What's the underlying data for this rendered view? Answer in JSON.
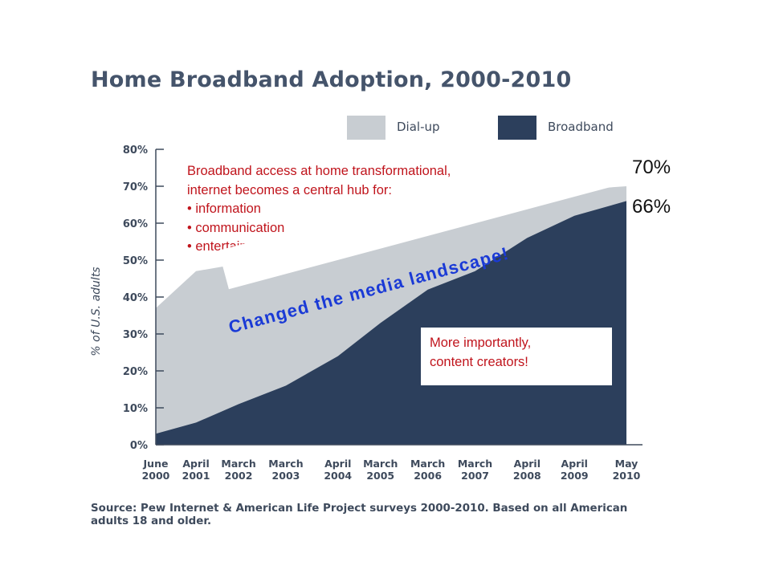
{
  "title": "Home Broadband Adoption, 2000-2010",
  "legend": {
    "dialup_label": "Dial-up",
    "broadband_label": "Broadband",
    "dialup_color": "#c8cdd2",
    "broadband_color": "#2c3f5c"
  },
  "callouts": {
    "transform_line1": "Broadband access at home transformational,",
    "transform_line2": "internet becomes a central hub for:",
    "bullet1": "• information",
    "bullet2": "• communication",
    "bullet3": "• entertainment",
    "banner": "Changed the media landscape!",
    "creators_line1": "More importantly,",
    "creators_line2": "content creators!",
    "text_color": "#c0141c",
    "banner_color": "#1a3ad6"
  },
  "end_labels": {
    "total": "70%",
    "broadband": "66%"
  },
  "source": "Source: Pew Internet & American Life Project surveys 2000-2010. Based on all American adults 18 and older.",
  "chart_data": {
    "type": "area",
    "title": "Home Broadband Adoption, 2000-2010",
    "ylabel": "% of U.S. adults",
    "xlabel": "",
    "ylim": [
      0,
      80
    ],
    "yticks": [
      "0%",
      "10%",
      "20%",
      "30%",
      "40%",
      "50%",
      "60%",
      "70%",
      "80%"
    ],
    "ytick_values": [
      0,
      10,
      20,
      30,
      40,
      50,
      60,
      70,
      80
    ],
    "categories": [
      [
        "June",
        "2000"
      ],
      [
        "April",
        "2001"
      ],
      [
        "March",
        "2002"
      ],
      [
        "March",
        "2003"
      ],
      [
        "April",
        "2004"
      ],
      [
        "March",
        "2005"
      ],
      [
        "March",
        "2006"
      ],
      [
        "March",
        "2007"
      ],
      [
        "April",
        "2008"
      ],
      [
        "April",
        "2009"
      ],
      [
        "May",
        "2010"
      ]
    ],
    "x": [
      2000.45,
      2001.3,
      2002.2,
      2003.2,
      2004.3,
      2005.2,
      2006.2,
      2007.2,
      2008.3,
      2009.3,
      2010.4
    ],
    "stacked": true,
    "legend_position": "top-right",
    "grid": false,
    "series": [
      {
        "name": "Broadband",
        "values": [
          3,
          6,
          11,
          16,
          24,
          33,
          42,
          47,
          56,
          62,
          66
        ],
        "color": "#2c3f5c"
      },
      {
        "name": "Dial-up",
        "values": [
          34,
          41,
          38,
          37,
          30,
          28,
          23,
          15,
          10,
          7,
          4
        ],
        "color": "#c8cdd2"
      }
    ],
    "totals": [
      37,
      47,
      49,
      53,
      54,
      61,
      65,
      62,
      66,
      69,
      70
    ]
  }
}
